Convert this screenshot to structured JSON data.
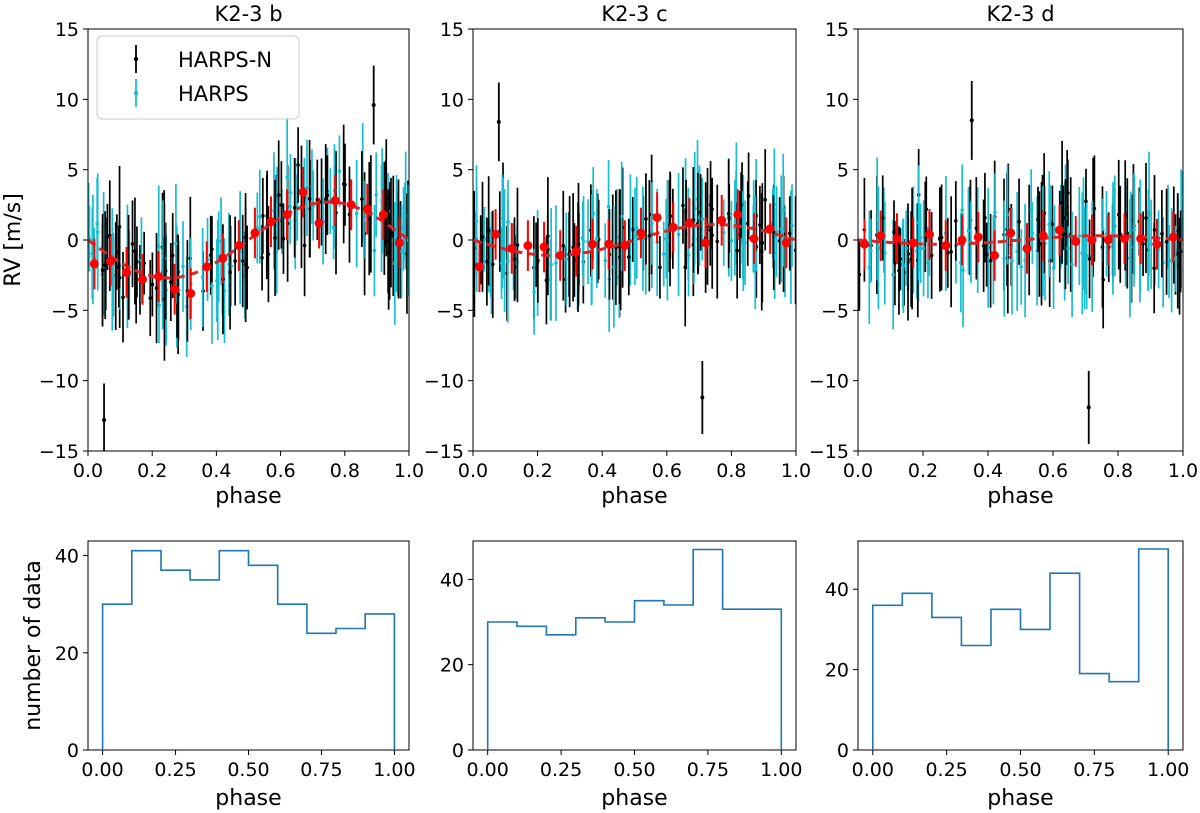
{
  "colors": {
    "harpsn": "#000000",
    "harps": "#17becf",
    "binned": "#ff0000",
    "model": "#d62728",
    "hist": "#1f77b4"
  },
  "legend": {
    "items": [
      "HARPS-N",
      "HARPS"
    ],
    "placement": "upper-left"
  },
  "chart_data": [
    {
      "type": "scatter",
      "title": "K2-3 b",
      "xlabel": "phase",
      "ylabel": "RV [m/s]",
      "xlim": [
        0,
        1
      ],
      "ylim": [
        -15,
        15
      ],
      "xticks": [
        "0.0",
        "0.2",
        "0.4",
        "0.6",
        "0.8",
        "1.0"
      ],
      "yticks": [
        "−15",
        "−10",
        "−5",
        "0",
        "5",
        "10",
        "15"
      ],
      "model_amplitude": 2.7,
      "binned": {
        "x": [
          0.02,
          0.07,
          0.12,
          0.17,
          0.22,
          0.27,
          0.32,
          0.37,
          0.42,
          0.47,
          0.52,
          0.57,
          0.62,
          0.67,
          0.72,
          0.77,
          0.82,
          0.87,
          0.92,
          0.97
        ],
        "y": [
          -1.7,
          -1.5,
          -2.3,
          -2.8,
          -2.6,
          -3.5,
          -3.8,
          -1.9,
          -1.3,
          -0.4,
          0.5,
          1.3,
          1.8,
          3.4,
          1.2,
          2.8,
          2.5,
          2.2,
          1.8,
          -0.2
        ]
      },
      "outliers": [
        {
          "series": "HARPS-N",
          "x": 0.05,
          "y": -12.8,
          "err": 2.6
        },
        {
          "series": "HARPS-N",
          "x": 0.89,
          "y": 9.6,
          "err": 2.8
        }
      ]
    },
    {
      "type": "scatter",
      "title": "K2-3 c",
      "xlabel": "phase",
      "ylabel": "",
      "xlim": [
        0,
        1
      ],
      "ylim": [
        -15,
        15
      ],
      "xticks": [
        "0.0",
        "0.2",
        "0.4",
        "0.6",
        "0.8",
        "1.0"
      ],
      "yticks": [
        "−15",
        "−10",
        "−5",
        "0",
        "5",
        "10",
        "15"
      ],
      "model_amplitude": 1.1,
      "binned": {
        "x": [
          0.02,
          0.07,
          0.12,
          0.17,
          0.22,
          0.27,
          0.32,
          0.37,
          0.42,
          0.47,
          0.52,
          0.57,
          0.62,
          0.67,
          0.72,
          0.77,
          0.82,
          0.87,
          0.92,
          0.97
        ],
        "y": [
          -1.9,
          0.4,
          -0.6,
          -0.4,
          -0.5,
          -1.1,
          -0.8,
          -0.3,
          -0.3,
          -0.4,
          0.5,
          1.6,
          0.9,
          1.2,
          -0.2,
          1.4,
          1.8,
          0.1,
          0.8,
          -0.2
        ]
      },
      "outliers": [
        {
          "series": "HARPS-N",
          "x": 0.08,
          "y": 8.4,
          "err": 2.8
        },
        {
          "series": "HARPS-N",
          "x": 0.71,
          "y": -11.2,
          "err": 2.6
        }
      ]
    },
    {
      "type": "scatter",
      "title": "K2-3 d",
      "xlabel": "phase",
      "ylabel": "",
      "xlim": [
        0,
        1
      ],
      "ylim": [
        -15,
        15
      ],
      "xticks": [
        "0.0",
        "0.2",
        "0.4",
        "0.6",
        "0.8",
        "1.0"
      ],
      "yticks": [
        "−15",
        "−10",
        "−5",
        "0",
        "5",
        "10",
        "15"
      ],
      "model_amplitude": 0.3,
      "binned": {
        "x": [
          0.02,
          0.07,
          0.12,
          0.17,
          0.22,
          0.27,
          0.32,
          0.37,
          0.42,
          0.47,
          0.52,
          0.57,
          0.62,
          0.67,
          0.72,
          0.77,
          0.82,
          0.87,
          0.92,
          0.97
        ],
        "y": [
          -0.3,
          0.3,
          0.1,
          -0.2,
          0.4,
          -0.4,
          0.0,
          0.2,
          -1.1,
          0.5,
          -0.6,
          0.3,
          0.7,
          -0.1,
          0.0,
          0.0,
          0.1,
          0.1,
          -0.3,
          0.2
        ]
      },
      "outliers": [
        {
          "series": "HARPS-N",
          "x": 0.35,
          "y": 8.5,
          "err": 2.8
        },
        {
          "series": "HARPS-N",
          "x": 0.71,
          "y": -11.9,
          "err": 2.6
        }
      ]
    },
    {
      "type": "bar",
      "title": "",
      "xlabel": "phase",
      "ylabel": "number of data",
      "xlim": [
        -0.05,
        1.05
      ],
      "ylim": [
        0,
        43
      ],
      "xticks": [
        "0.00",
        "0.25",
        "0.50",
        "0.75",
        "1.00"
      ],
      "yticks": [
        "0",
        "20",
        "40"
      ],
      "bin_edges": [
        0,
        0.1,
        0.2,
        0.3,
        0.4,
        0.5,
        0.6,
        0.7,
        0.8,
        0.9,
        1.0
      ],
      "values": [
        30,
        41,
        37,
        35,
        41,
        38,
        30,
        24,
        25,
        28
      ]
    },
    {
      "type": "bar",
      "title": "",
      "xlabel": "phase",
      "ylabel": "",
      "xlim": [
        -0.05,
        1.05
      ],
      "ylim": [
        0,
        49
      ],
      "xticks": [
        "0.00",
        "0.25",
        "0.50",
        "0.75",
        "1.00"
      ],
      "yticks": [
        "0",
        "20",
        "40"
      ],
      "bin_edges": [
        0,
        0.1,
        0.2,
        0.3,
        0.4,
        0.5,
        0.6,
        0.7,
        0.8,
        0.9,
        1.0
      ],
      "values": [
        30,
        29,
        27,
        31,
        30,
        35,
        34,
        47,
        33,
        33
      ]
    },
    {
      "type": "bar",
      "title": "",
      "xlabel": "phase",
      "ylabel": "",
      "xlim": [
        -0.05,
        1.05
      ],
      "ylim": [
        0,
        52
      ],
      "xticks": [
        "0.00",
        "0.25",
        "0.50",
        "0.75",
        "1.00"
      ],
      "yticks": [
        "0",
        "20",
        "40"
      ],
      "bin_edges": [
        0,
        0.1,
        0.2,
        0.3,
        0.4,
        0.5,
        0.6,
        0.7,
        0.8,
        0.9,
        1.0
      ],
      "values": [
        36,
        39,
        33,
        26,
        35,
        30,
        44,
        19,
        17,
        50
      ]
    }
  ]
}
